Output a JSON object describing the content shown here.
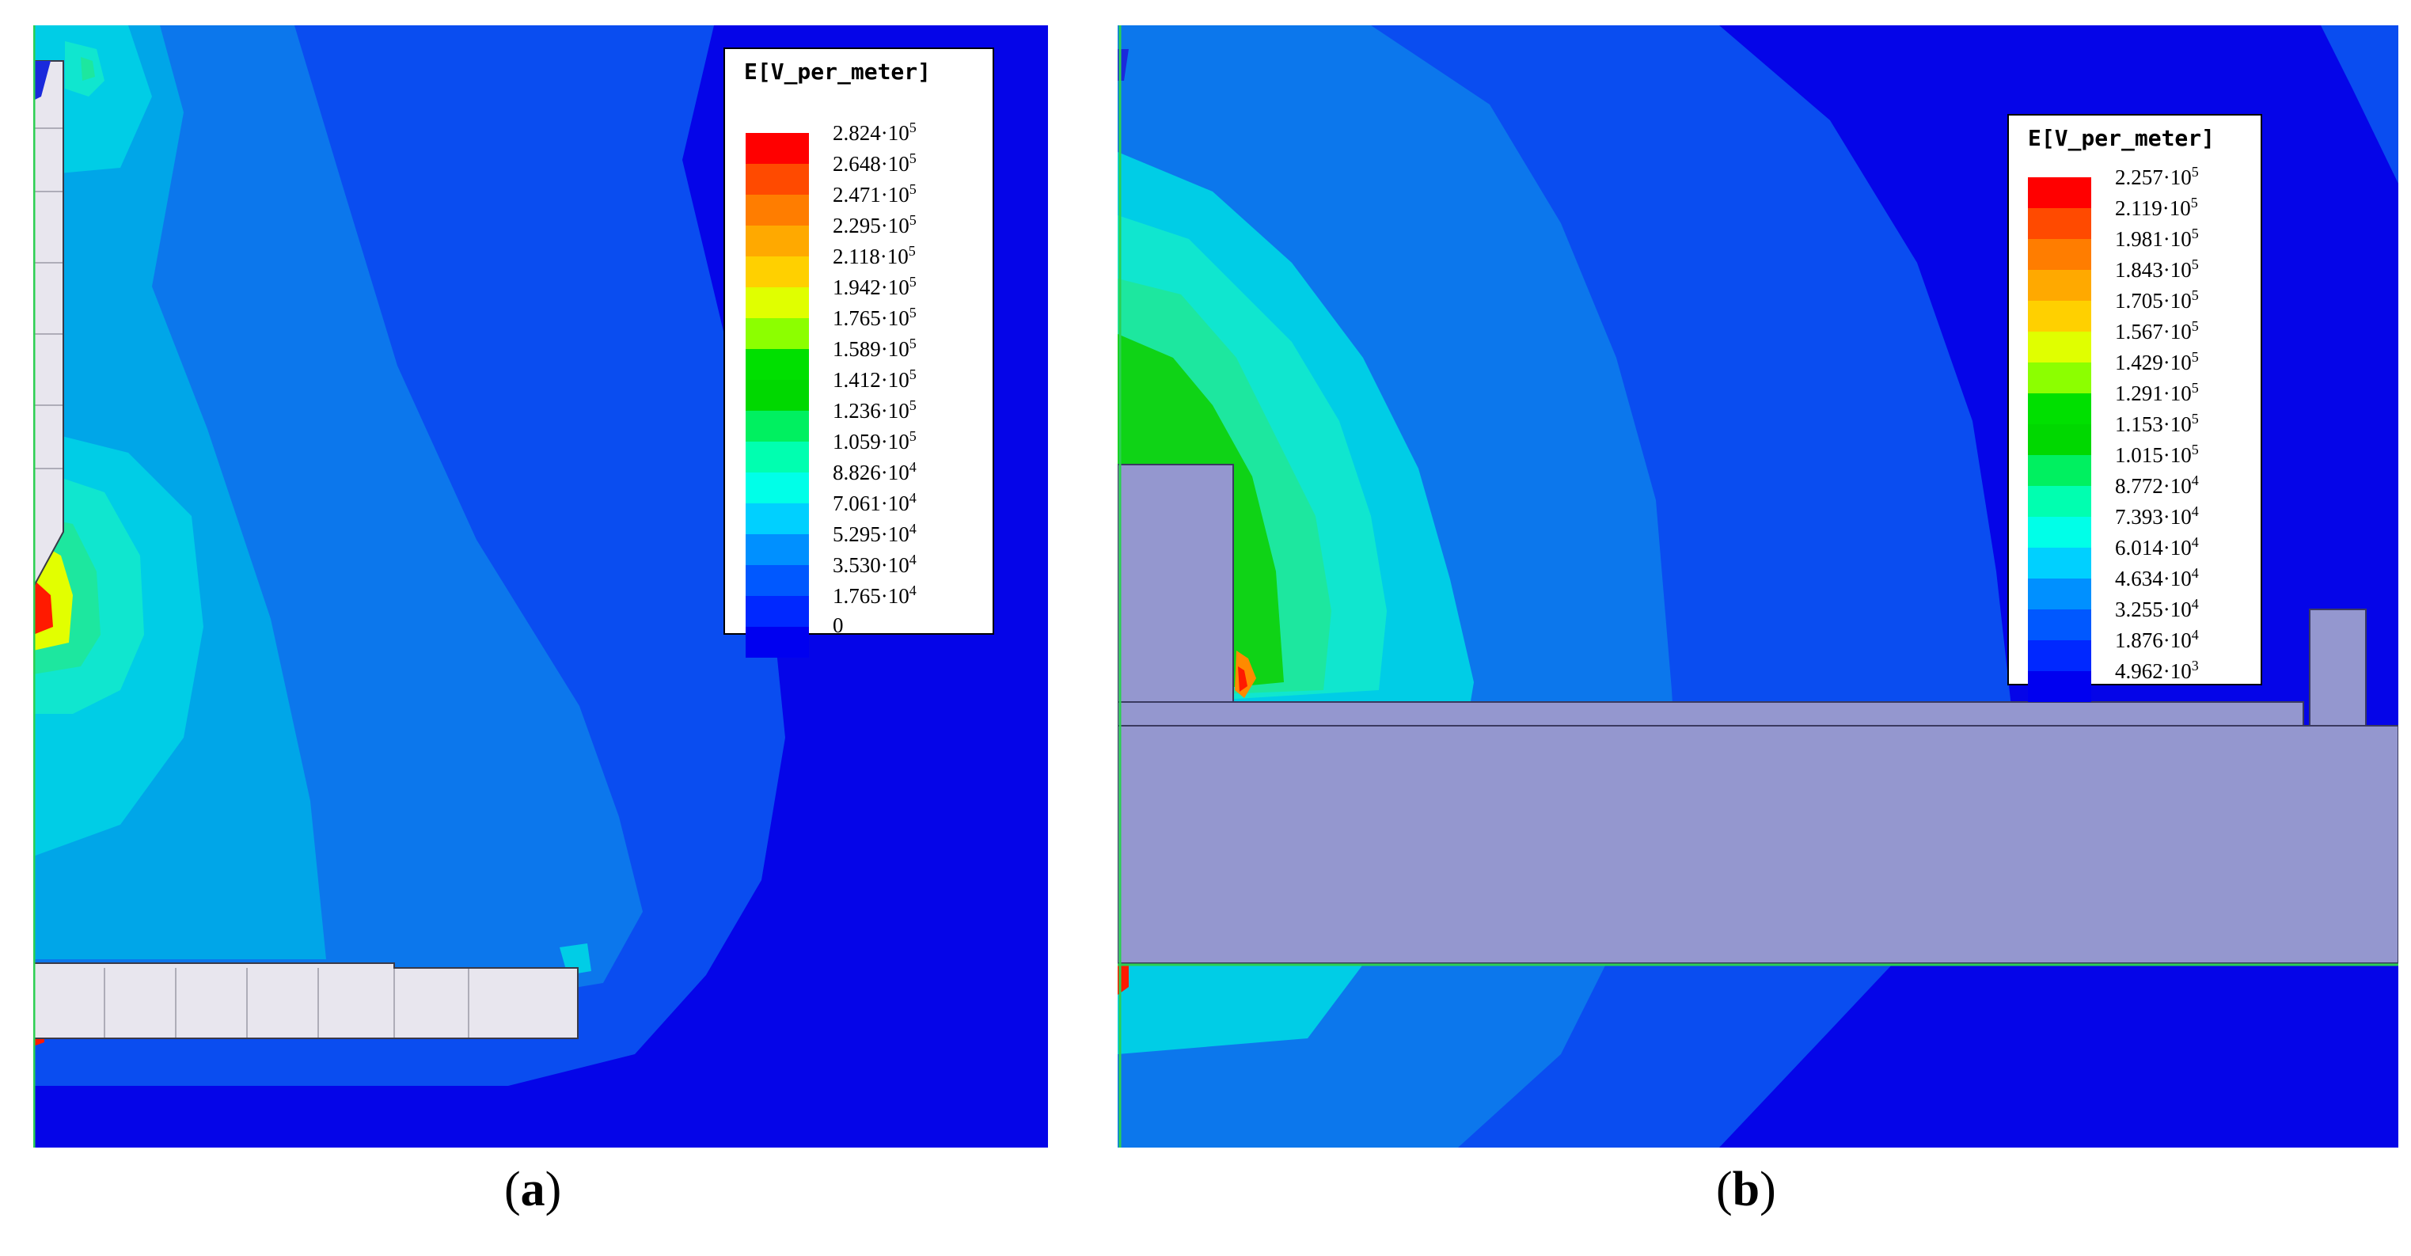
{
  "panels": [
    {
      "id": "a",
      "caption_letter": "a",
      "legend": {
        "title": "E[V_per_meter]",
        "ticks": [
          {
            "mant": "2.824",
            "exp": "5"
          },
          {
            "mant": "2.648",
            "exp": "5"
          },
          {
            "mant": "2.471",
            "exp": "5"
          },
          {
            "mant": "2.295",
            "exp": "5"
          },
          {
            "mant": "2.118",
            "exp": "5"
          },
          {
            "mant": "1.942",
            "exp": "5"
          },
          {
            "mant": "1.765",
            "exp": "5"
          },
          {
            "mant": "1.589",
            "exp": "5"
          },
          {
            "mant": "1.412",
            "exp": "5"
          },
          {
            "mant": "1.236",
            "exp": "5"
          },
          {
            "mant": "1.059",
            "exp": "5"
          },
          {
            "mant": "8.826",
            "exp": "4"
          },
          {
            "mant": "7.061",
            "exp": "4"
          },
          {
            "mant": "5.295",
            "exp": "4"
          },
          {
            "mant": "3.530",
            "exp": "4"
          },
          {
            "mant": "1.765",
            "exp": "4"
          },
          {
            "mant": "0",
            "exp": ""
          }
        ]
      }
    },
    {
      "id": "b",
      "caption_letter": "b",
      "legend": {
        "title": "E[V_per_meter]",
        "ticks": [
          {
            "mant": "2.257",
            "exp": "5"
          },
          {
            "mant": "2.119",
            "exp": "5"
          },
          {
            "mant": "1.981",
            "exp": "5"
          },
          {
            "mant": "1.843",
            "exp": "5"
          },
          {
            "mant": "1.705",
            "exp": "5"
          },
          {
            "mant": "1.567",
            "exp": "5"
          },
          {
            "mant": "1.429",
            "exp": "5"
          },
          {
            "mant": "1.291",
            "exp": "5"
          },
          {
            "mant": "1.153",
            "exp": "5"
          },
          {
            "mant": "1.015",
            "exp": "5"
          },
          {
            "mant": "8.772",
            "exp": "4"
          },
          {
            "mant": "7.393",
            "exp": "4"
          },
          {
            "mant": "6.014",
            "exp": "4"
          },
          {
            "mant": "4.634",
            "exp": "4"
          },
          {
            "mant": "3.255",
            "exp": "4"
          },
          {
            "mant": "1.876",
            "exp": "4"
          },
          {
            "mant": "4.962",
            "exp": "3"
          }
        ]
      }
    }
  ],
  "colormap": [
    "#ff0000",
    "#ff4a00",
    "#ff7d00",
    "#ffa900",
    "#ffd000",
    "#e0ff00",
    "#8cff00",
    "#00e000",
    "#00d800",
    "#00f060",
    "#00ffb0",
    "#00ffe8",
    "#00d0ff",
    "#0090ff",
    "#0058ff",
    "#0028ff",
    "#0000f0"
  ],
  "colors": {
    "field_levels": [
      "#0505e8",
      "#0a4df0",
      "#0c77ec",
      "#00a6e8",
      "#00cde6",
      "#10e6cf",
      "#1de79f",
      "#19dc5e",
      "#0fd316",
      "#e2ff00",
      "#ff8a00",
      "#ff1a00"
    ],
    "body_light": "#e8e6ee",
    "body_purple": "#9497cf",
    "boundary_green": "#2ccf52"
  }
}
